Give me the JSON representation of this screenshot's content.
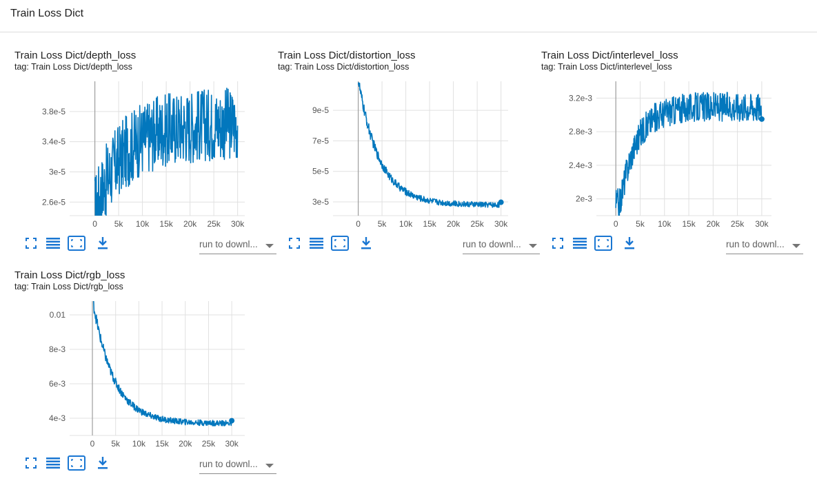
{
  "header": {
    "title": "Train Loss Dict"
  },
  "toolbar": {
    "icons": [
      "fullscreen-icon",
      "list-icon",
      "fit-domain-icon",
      "download-icon"
    ],
    "run_select_label": "run to downl...",
    "accent": "#1976d2"
  },
  "colors": {
    "series": "#0277bd",
    "grid": "#e0e0e0",
    "zero_line": "#9e9e9e"
  },
  "cards": [
    {
      "title": "Train Loss Dict/depth_loss",
      "tag": "tag: Train Loss Dict/depth_loss",
      "chart_data": {
        "type": "line",
        "shape": "noisy-rise",
        "x_ticks": [
          "0",
          "5k",
          "10k",
          "15k",
          "20k",
          "25k",
          "30k"
        ],
        "x_tick_values": [
          0,
          5000,
          10000,
          15000,
          20000,
          25000,
          30000
        ],
        "y_ticks": [
          "2.6e-5",
          "3e-5",
          "3.4e-5",
          "3.8e-5"
        ],
        "y_tick_values": [
          2.6e-05,
          3e-05,
          3.4e-05,
          3.8e-05
        ],
        "xlim": [
          -5300,
          31500
        ],
        "ylim": [
          2.42e-05,
          4.2e-05
        ],
        "x_end": 30000,
        "start_value": 2.5e-05,
        "end_value": 3.6e-05,
        "end_marker": false,
        "grid": true
      }
    },
    {
      "title": "Train Loss Dict/distortion_loss",
      "tag": "tag: Train Loss Dict/distortion_loss",
      "chart_data": {
        "type": "line",
        "shape": "decay",
        "x_ticks": [
          "0",
          "5k",
          "10k",
          "15k",
          "20k",
          "25k",
          "30k"
        ],
        "x_tick_values": [
          0,
          5000,
          10000,
          15000,
          20000,
          25000,
          30000
        ],
        "y_ticks": [
          "3e-5",
          "5e-5",
          "7e-5",
          "9e-5"
        ],
        "y_tick_values": [
          3e-05,
          5e-05,
          7e-05,
          9e-05
        ],
        "xlim": [
          -5300,
          31500
        ],
        "ylim": [
          2.1e-05,
          0.000109
        ],
        "x_end": 30000,
        "start_value": 0.00011,
        "end_value": 2.8e-05,
        "end_marker": true,
        "grid": true
      }
    },
    {
      "title": "Train Loss Dict/interlevel_loss",
      "tag": "tag: Train Loss Dict/interlevel_loss",
      "chart_data": {
        "type": "line",
        "shape": "rise-plateau",
        "x_ticks": [
          "0",
          "5k",
          "10k",
          "15k",
          "20k",
          "25k",
          "30k"
        ],
        "x_tick_values": [
          0,
          5000,
          10000,
          15000,
          20000,
          25000,
          30000
        ],
        "y_ticks": [
          "2e-3",
          "2.4e-3",
          "2.8e-3",
          "3.2e-3"
        ],
        "y_tick_values": [
          0.002,
          0.0024,
          0.0028,
          0.0032
        ],
        "xlim": [
          -4000,
          32000
        ],
        "ylim": [
          0.0018,
          0.0034
        ],
        "x_end": 30000,
        "start_value": 0.00195,
        "end_value": 0.00295,
        "end_marker": true,
        "grid": true
      }
    },
    {
      "title": "Train Loss Dict/rgb_loss",
      "tag": "tag: Train Loss Dict/rgb_loss",
      "chart_data": {
        "type": "line",
        "shape": "decay",
        "x_ticks": [
          "0",
          "5k",
          "10k",
          "15k",
          "20k",
          "25k",
          "30k"
        ],
        "x_tick_values": [
          0,
          5000,
          10000,
          15000,
          20000,
          25000,
          30000
        ],
        "y_ticks": [
          "4e-3",
          "6e-3",
          "8e-3",
          "0.01"
        ],
        "y_tick_values": [
          0.004,
          0.006,
          0.008,
          0.01
        ],
        "xlim": [
          -4900,
          32800
        ],
        "ylim": [
          0.003,
          0.0108
        ],
        "x_end": 30000,
        "start_value": 0.011,
        "end_value": 0.0037,
        "end_marker": true,
        "grid": true
      }
    }
  ]
}
